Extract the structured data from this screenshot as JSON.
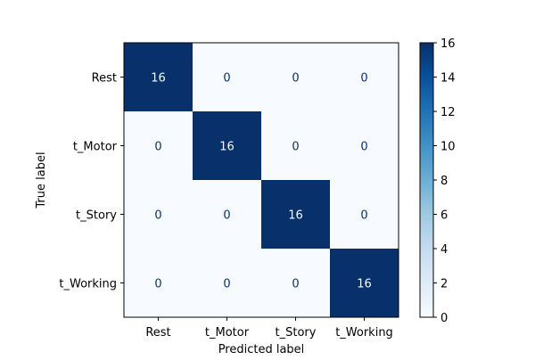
{
  "chart_data": {
    "type": "heatmap",
    "xlabel": "Predicted label",
    "ylabel": "True label",
    "x_categories": [
      "Rest",
      "t_Motor",
      "t_Story",
      "t_Working"
    ],
    "y_categories": [
      "Rest",
      "t_Motor",
      "t_Story",
      "t_Working"
    ],
    "matrix": [
      [
        16,
        0,
        0,
        0
      ],
      [
        0,
        16,
        0,
        0
      ],
      [
        0,
        0,
        16,
        0
      ],
      [
        0,
        0,
        0,
        16
      ]
    ],
    "colorbar": {
      "colormap": "Blues",
      "range": [
        0,
        16
      ],
      "ticks": [
        0,
        2,
        4,
        6,
        8,
        10,
        12,
        14,
        16
      ]
    },
    "colors": {
      "low": "#f7fbff",
      "high": "#08306b",
      "text_on_dark": "#f7fbff",
      "text_on_light": "#08306b"
    }
  }
}
